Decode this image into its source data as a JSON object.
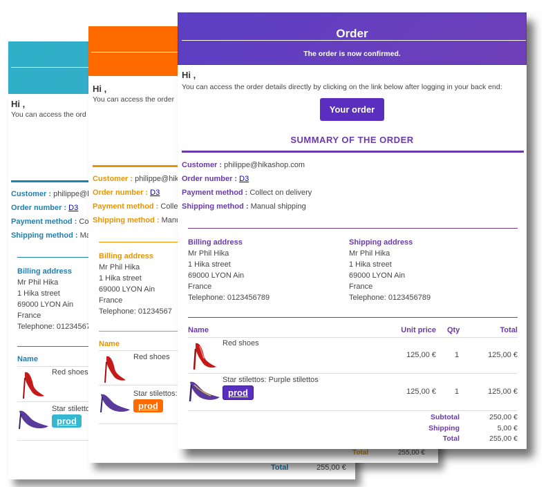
{
  "colors": {
    "teal": "#2eb0c9",
    "orange": "#ff6a00",
    "purple": "#5b3fc4",
    "purple_text": "#6a3aaa",
    "teal_text": "#1f7fb0",
    "orange_text": "#e69500",
    "link": "#0000cc"
  },
  "back_card": {
    "greeting": "Hi ,",
    "intro": "You can access the ord",
    "customer_label": "Customer :",
    "customer_value": "philippe@h",
    "order_label": "Order number :",
    "order_value": "D3",
    "payment_label": "Payment method :",
    "payment_value": "Co",
    "shipping_label": "Shipping method :",
    "shipping_value": "Ma",
    "billing_title": "Billing address",
    "billing_lines": [
      "Mr Phil Hika",
      "1 Hika street",
      "69000 LYON Ain",
      "France",
      "Telephone: 01234567"
    ],
    "name_header": "Name",
    "item1": "Red shoes",
    "item2": "Star stiletto",
    "prod_label": "prod",
    "total_label": "Total",
    "total_value": "255,00 €"
  },
  "mid_card": {
    "greeting": "Hi ,",
    "intro": "You can access the order",
    "customer_label": "Customer :",
    "customer_value": "philippe@hik",
    "order_label": "Order number :",
    "order_value": "D3",
    "payment_label": "Payment method :",
    "payment_value": "Colle",
    "shipping_label": "Shipping method :",
    "shipping_value": "Manu",
    "billing_title": "Billing address",
    "billing_lines": [
      "Mr Phil Hika",
      "1 Hika street",
      "69000 LYON Ain",
      "France",
      "Telephone: 01234567"
    ],
    "name_header": "Name",
    "item1": "Red shoes",
    "item2": "Star stilettos:",
    "prod_label": "prod",
    "total_label": "Total",
    "total_value": "255,00 €"
  },
  "front_card": {
    "title": "Order",
    "subtitle": "The order is now confirmed.",
    "greeting": "Hi ,",
    "intro": "You can access the order details directly by clicking on the link below after logging in your back end:",
    "order_button": "Your order",
    "summary_title": "SUMMARY OF THE ORDER",
    "customer_label": "Customer :",
    "customer_value": "philippe@hikashop.com",
    "order_label": "Order number :",
    "order_value": "D3",
    "payment_label": "Payment method :",
    "payment_value": "Collect on delivery",
    "shipping_label": "Shipping method :",
    "shipping_value": "Manual shipping",
    "billing_title": "Billing address",
    "billing_lines": [
      "Mr Phil Hika",
      "1 Hika street",
      "69000 LYON Ain",
      "France",
      "Telephone: 0123456789"
    ],
    "shipping_title": "Shipping address",
    "shipping_lines": [
      "Mr Phil Hika",
      "1 Hika street",
      "69000 LYON Ain",
      "France",
      "Telephone: 0123456789"
    ],
    "table_headers": {
      "name": "Name",
      "unit_price": "Unit price",
      "qty": "Qty",
      "total": "Total"
    },
    "items": [
      {
        "name": "Red shoes",
        "unit_price": "125,00 €",
        "qty": "1",
        "total": "125,00 €",
        "icon": "red-shoe-icon"
      },
      {
        "name": "Star stilettos: Purple stilettos",
        "unit_price": "125,00 €",
        "qty": "1",
        "total": "125,00 €",
        "icon": "purple-shoe-icon"
      }
    ],
    "prod_label": "prod",
    "subtotal_label": "Subtotal",
    "subtotal_value": "250,00 €",
    "shipping_cost_label": "Shipping",
    "shipping_cost_value": "5,00 €",
    "total_label": "Total",
    "total_value": "255,00 €"
  }
}
